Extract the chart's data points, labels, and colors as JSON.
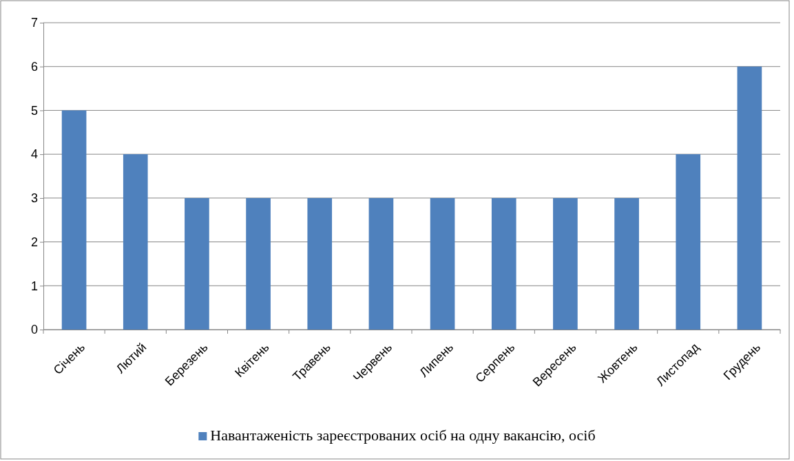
{
  "chart_data": {
    "type": "bar",
    "categories": [
      "Січень",
      "Лютий",
      "Березень",
      "Квітень",
      "Травень",
      "Червень",
      "Липень",
      "Серпень",
      "Вересень",
      "Жовтень",
      "Листопад",
      "Грудень"
    ],
    "series": [
      {
        "name": "Навантаженість зареєстрованих осіб на одну вакансію, осіб",
        "color": "#4f81bd",
        "values": [
          5,
          4,
          3,
          3,
          3,
          3,
          3,
          3,
          3,
          3,
          4,
          6
        ]
      }
    ],
    "ylim": [
      0,
      7
    ],
    "yticks": [
      0,
      1,
      2,
      3,
      4,
      5,
      6,
      7
    ],
    "grid": "y",
    "legend": "bottom"
  }
}
